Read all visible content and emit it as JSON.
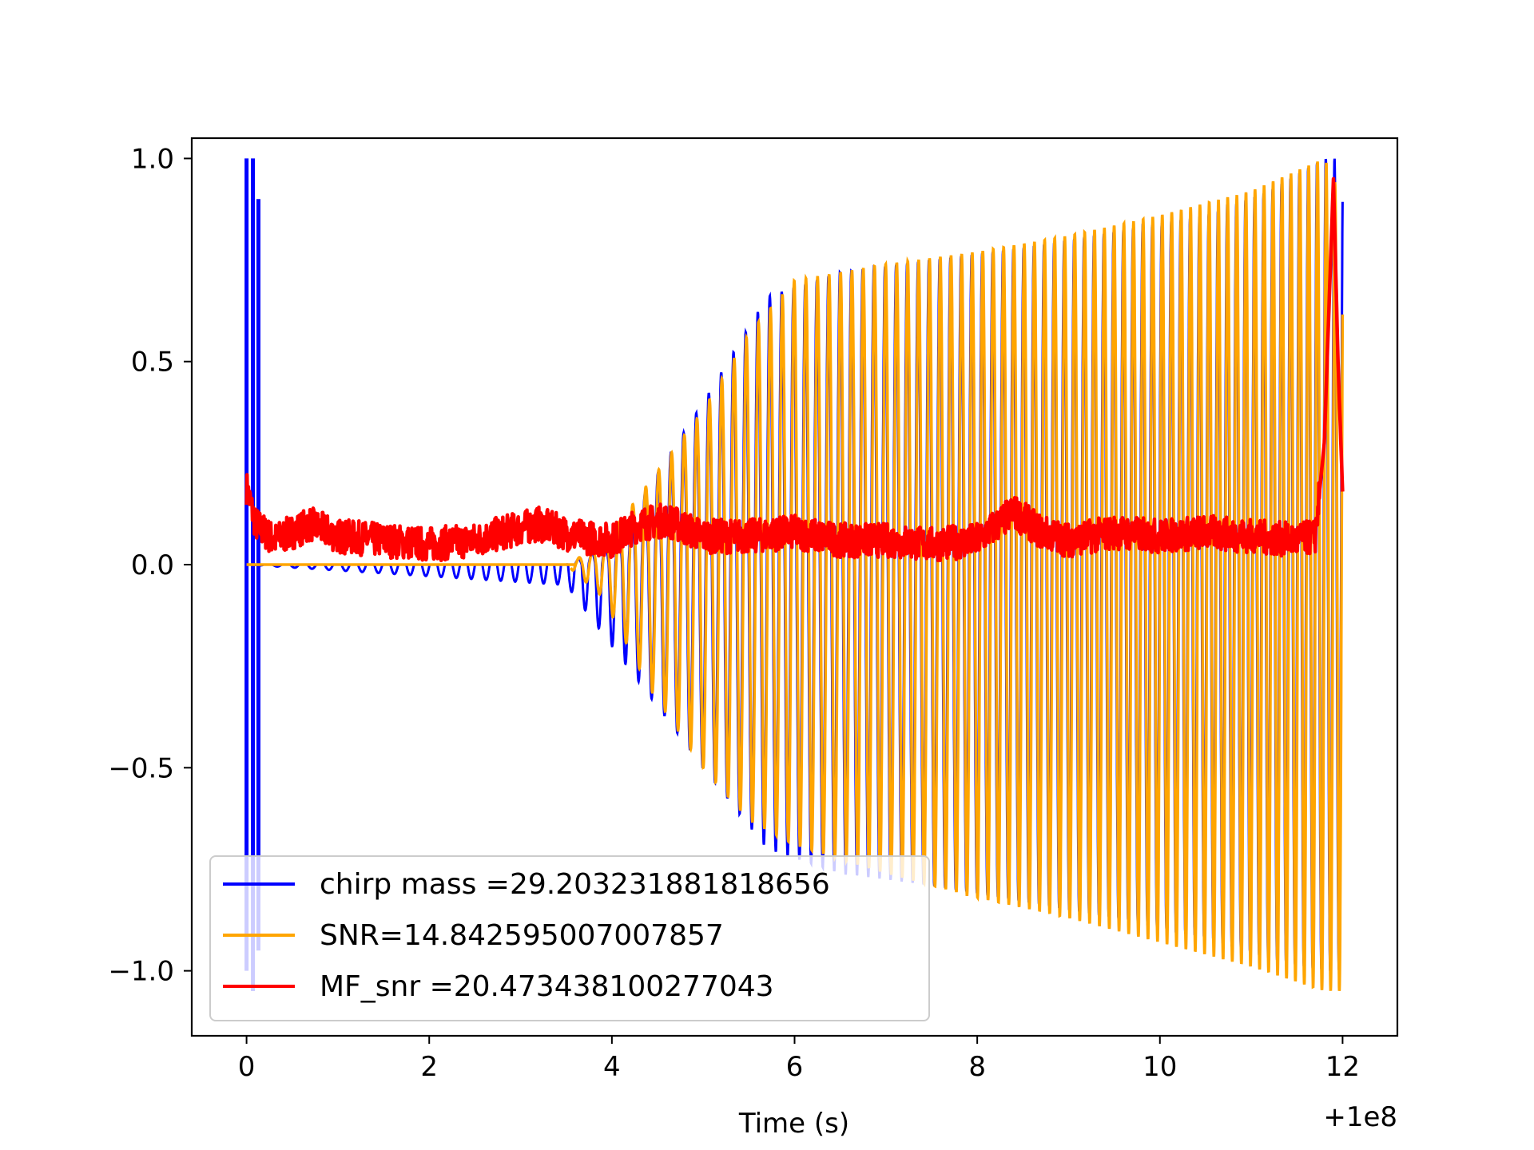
{
  "chart_data": {
    "type": "line",
    "title": "",
    "xlabel": "Time (s)",
    "ylabel": "",
    "x_offset_label": "+1e8",
    "xlim": [
      -0.6,
      12.6
    ],
    "ylim": [
      -1.16,
      1.05
    ],
    "xticks": [
      0,
      2,
      4,
      6,
      8,
      10,
      12
    ],
    "xtick_labels": [
      "0",
      "2",
      "4",
      "6",
      "8",
      "10",
      "12"
    ],
    "yticks": [
      -1.0,
      -0.5,
      0.0,
      0.5,
      1.0
    ],
    "ytick_labels": [
      "−1.0",
      "−0.5",
      "0.0",
      "0.5",
      "1.0"
    ],
    "grid": false,
    "legend_position": "lower-left",
    "series": [
      {
        "name": "chirp mass =29.203231881818656",
        "color": "#0000ff",
        "envelope": {
          "x": [
            0,
            3.5,
            4,
            5,
            5.7,
            6.5,
            7.5,
            8.5,
            9.5,
            10.5,
            11.2,
            11.8,
            12.0
          ],
          "upper": [
            0,
            0,
            0.05,
            0.4,
            0.66,
            0.72,
            0.75,
            0.78,
            0.82,
            0.86,
            0.92,
            1.0,
            1.0
          ],
          "lower": [
            0,
            -0.05,
            -0.2,
            -0.5,
            -0.7,
            -0.76,
            -0.79,
            -0.83,
            -0.87,
            -0.92,
            -0.97,
            -1.0,
            -1.0
          ]
        },
        "initial_spikes": [
          {
            "x": 0.0,
            "ymin": -1.0,
            "ymax": 1.0
          },
          {
            "x": 0.07,
            "ymin": -1.05,
            "ymax": 1.0
          },
          {
            "x": 0.13,
            "ymin": -0.95,
            "ymax": 0.9
          }
        ]
      },
      {
        "name": "SNR=14.842595007007857",
        "color": "#ffa500",
        "envelope": {
          "x": [
            0,
            3.5,
            3.9,
            4.4,
            5.0,
            5.5,
            6.0,
            7.0,
            8.0,
            9.0,
            10.0,
            11.0,
            11.8,
            12.0
          ],
          "upper": [
            0,
            0,
            0.05,
            0.2,
            0.38,
            0.57,
            0.7,
            0.74,
            0.77,
            0.81,
            0.86,
            0.92,
            1.0,
            0.9
          ],
          "lower": [
            0,
            0,
            -0.08,
            -0.3,
            -0.5,
            -0.63,
            -0.69,
            -0.76,
            -0.82,
            -0.87,
            -0.93,
            -0.99,
            -1.05,
            -1.05
          ]
        }
      },
      {
        "name": "MF_snr =20.473438100277043",
        "color": "#ff0000",
        "baseline": {
          "x": [
            0,
            0.1,
            0.3,
            0.7,
            1.0,
            1.5,
            2.0,
            2.5,
            3.0,
            3.2,
            3.6,
            4.0,
            4.3,
            4.6,
            5.0,
            5.5,
            6.0,
            6.5,
            7.0,
            7.5,
            8.0,
            8.4,
            8.7,
            9.0,
            9.5,
            10.0,
            10.5,
            11.0,
            11.5,
            11.7,
            11.8,
            11.9,
            11.95,
            12.0
          ],
          "y": [
            0.19,
            0.1,
            0.06,
            0.1,
            0.07,
            0.06,
            0.05,
            0.06,
            0.09,
            0.1,
            0.07,
            0.06,
            0.1,
            0.11,
            0.07,
            0.07,
            0.08,
            0.06,
            0.06,
            0.05,
            0.06,
            0.13,
            0.08,
            0.06,
            0.08,
            0.07,
            0.08,
            0.07,
            0.06,
            0.07,
            0.3,
            0.95,
            0.5,
            0.18
          ]
        }
      }
    ]
  }
}
